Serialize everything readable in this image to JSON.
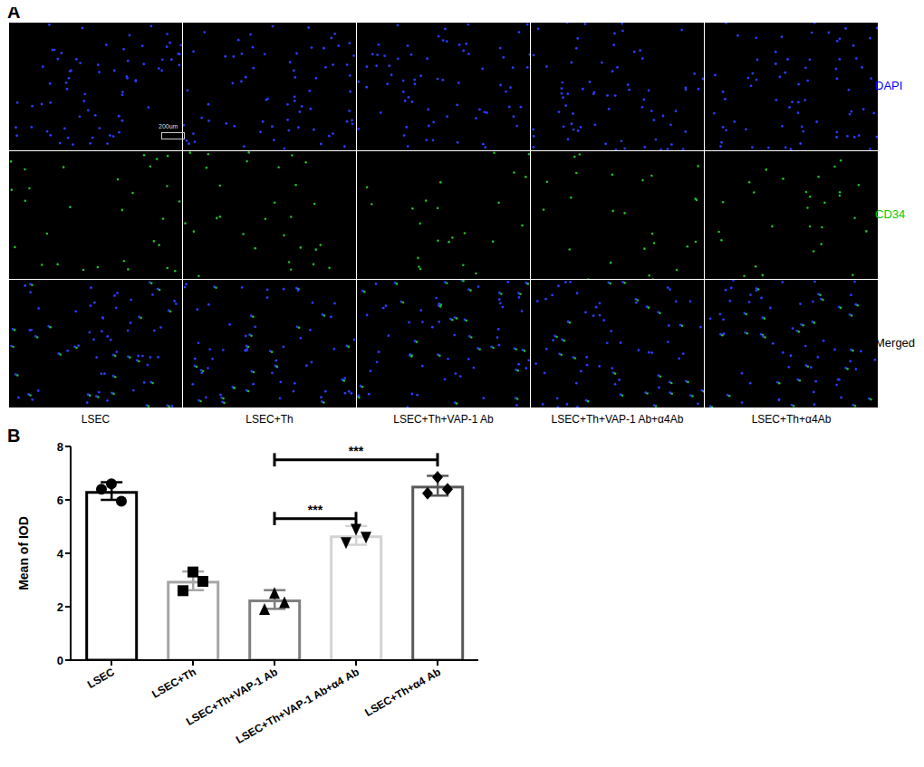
{
  "panel_labels": [
    "A",
    "B"
  ],
  "microscopy": {
    "rows": [
      {
        "label": "DAPI",
        "color": "#0000ff"
      },
      {
        "label": "CD34",
        "color": "#00cc00"
      },
      {
        "label": "Merged",
        "color": "#000000"
      }
    ],
    "columns": [
      "LSEC",
      "LSEC+Th",
      "LSEC+Th+VAP-1 Ab",
      "LSEC+Th+VAP-1 Ab+α4Ab",
      "LSEC+Th+α4Ab"
    ],
    "scale_bar": "200um"
  },
  "chart_data": {
    "type": "bar",
    "y_label": "Mean of IOD",
    "categories": [
      "LSEC",
      "LSEC+Th",
      "LSEC+Th+VAP-1 Ab",
      "LSEC+Th+VAP-1 Ab+α4 Ab",
      "LSEC+Th+α4 Ab"
    ],
    "values": [
      6.33,
      2.97,
      2.27,
      4.67,
      6.53
    ],
    "errors": [
      0.33,
      0.35,
      0.35,
      0.35,
      0.37
    ],
    "points": [
      [
        6.4,
        6.6,
        5.95
      ],
      [
        2.6,
        3.3,
        2.95
      ],
      [
        1.9,
        2.5,
        2.15
      ],
      [
        4.4,
        4.9,
        4.6
      ],
      [
        6.25,
        6.85,
        6.4
      ]
    ],
    "colors": [
      "#000000",
      "#a6a6a6",
      "#7f7f7f",
      "#d3d3d3",
      "#595959"
    ],
    "marker": [
      "circle",
      "square",
      "triangle",
      "triangle-down",
      "diamond"
    ],
    "ylim": [
      0,
      8
    ],
    "yticks": [
      0,
      2,
      4,
      6,
      8
    ],
    "grid": false,
    "annotations": [
      {
        "from": 2,
        "to": 3,
        "y": 5.3,
        "text": "***"
      },
      {
        "from": 2,
        "to": 4,
        "y": 7.5,
        "text": "***"
      }
    ]
  }
}
